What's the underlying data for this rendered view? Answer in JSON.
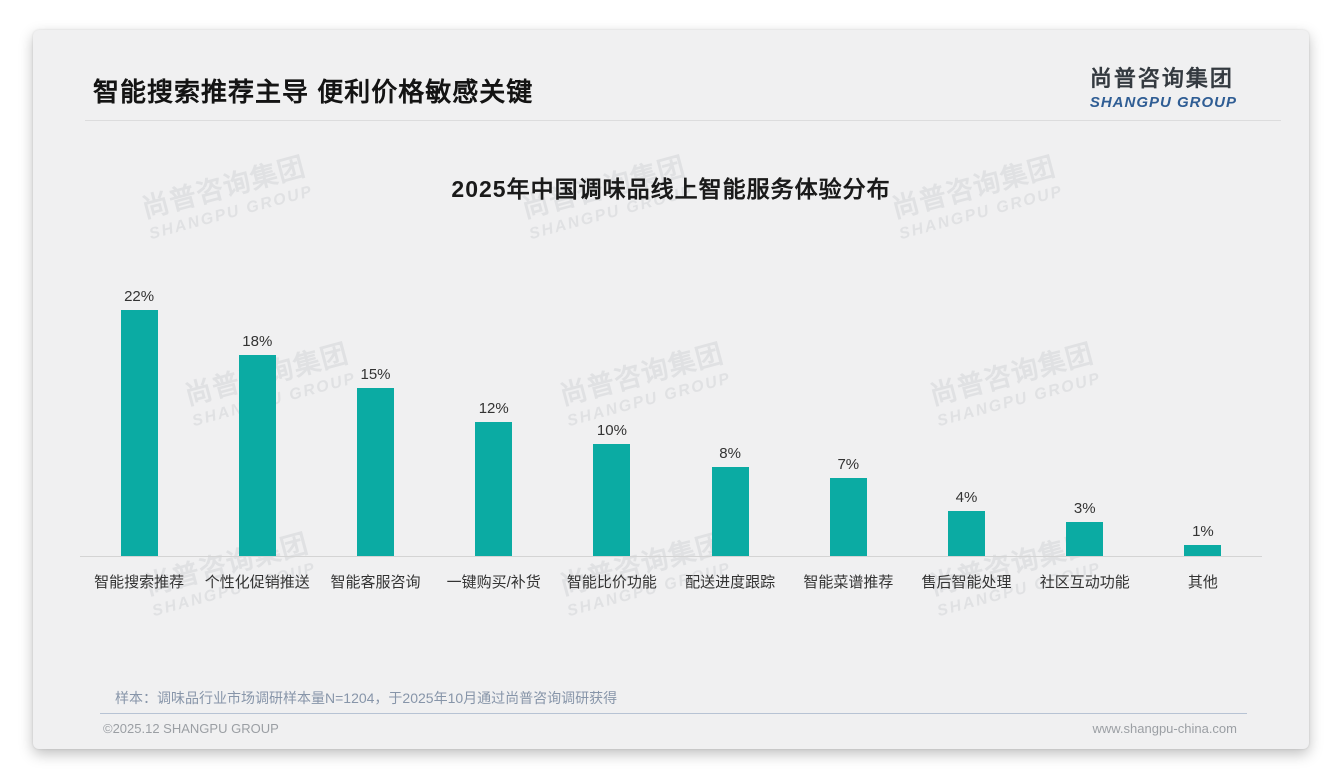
{
  "page": {
    "header": {
      "title": "智能搜索推荐主导 便利价格敏感关键",
      "logo": {
        "name_cn": "尚普咨询集团",
        "name_en": "SHANGPU GROUP",
        "cn_color": "#343a40",
        "en_color": "#2f5d94"
      }
    },
    "watermark": {
      "line1": "尚普咨询集团",
      "line2": "SHANGPU GROUP"
    },
    "footnote": "样本：调味品行业市场调研样本量N=1204，于2025年10月通过尚普咨询调研获得",
    "footer": {
      "copyright": "©2025.12 SHANGPU GROUP",
      "website": "www.shangpu-china.com"
    }
  },
  "chart_data": {
    "type": "bar",
    "title": "2025年中国调味品线上智能服务体验分布",
    "categories": [
      "智能搜索推荐",
      "个性化促销推送",
      "智能客服咨询",
      "一键购买/补货",
      "智能比价功能",
      "配送进度跟踪",
      "智能菜谱推荐",
      "售后智能处理",
      "社区互动功能",
      "其他"
    ],
    "values": [
      22,
      18,
      15,
      12,
      10,
      8,
      7,
      4,
      3,
      1
    ],
    "data_labels": [
      "22%",
      "18%",
      "15%",
      "12%",
      "10%",
      "8%",
      "7%",
      "4%",
      "3%",
      "1%"
    ],
    "unit": "%",
    "xlabel": "",
    "ylabel": "",
    "ylim": [
      0,
      24
    ],
    "grid": false,
    "legend": "none",
    "bar_color": "#0bab a3",
    "bar_color_hex": "#0baba3",
    "axis_line_color": "#d4d4d4",
    "label_color": "#333333"
  }
}
